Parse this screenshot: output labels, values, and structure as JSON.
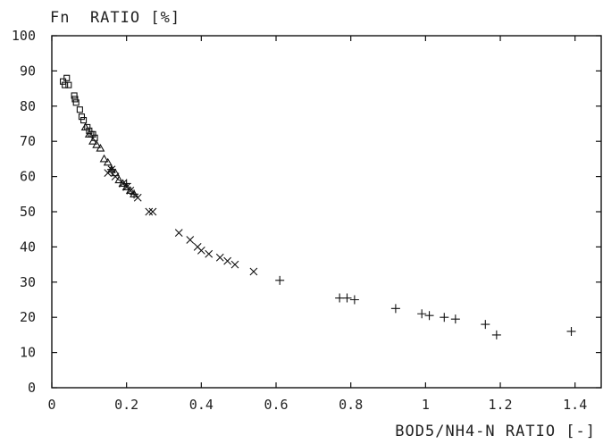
{
  "chart_data": {
    "type": "scatter",
    "ylabel": "Fn  RATIO [%]",
    "xlabel": "BOD5/NH4-N RATIO [-]",
    "xlim": [
      0,
      1.47
    ],
    "ylim": [
      0,
      100
    ],
    "x_ticks": [
      "0",
      "0.2",
      "0.4",
      "0.6",
      "0.8",
      "1",
      "1.2",
      "1.4"
    ],
    "y_ticks": [
      "0",
      "10",
      "20",
      "30",
      "40",
      "50",
      "60",
      "70",
      "80",
      "90",
      "100"
    ],
    "x_tick_values": [
      0,
      0.2,
      0.4,
      0.6,
      0.8,
      1.0,
      1.2,
      1.4
    ],
    "y_tick_values": [
      0,
      10,
      20,
      30,
      40,
      50,
      60,
      70,
      80,
      90,
      100
    ],
    "grid": false,
    "series": [
      {
        "marker": "square",
        "x": [
          0.03,
          0.04,
          0.035,
          0.045,
          0.06,
          0.062,
          0.065,
          0.075,
          0.08,
          0.085,
          0.095,
          0.1,
          0.105,
          0.11,
          0.115
        ],
        "y": [
          87,
          88,
          86,
          86,
          83,
          82,
          81,
          79,
          77,
          76,
          74,
          73,
          72,
          72,
          71
        ]
      },
      {
        "marker": "triangle",
        "x": [
          0.09,
          0.1,
          0.11,
          0.12,
          0.13,
          0.14,
          0.15,
          0.16,
          0.17,
          0.18,
          0.19,
          0.2,
          0.21,
          0.22
        ],
        "y": [
          74,
          72,
          70,
          69,
          68,
          65,
          64,
          62,
          61,
          59,
          58,
          57,
          56,
          55
        ]
      },
      {
        "marker": "x",
        "x": [
          0.15,
          0.16,
          0.17,
          0.19,
          0.2,
          0.21,
          0.23,
          0.26,
          0.27,
          0.34,
          0.37,
          0.39,
          0.4,
          0.42,
          0.45,
          0.47,
          0.49,
          0.54
        ],
        "y": [
          61,
          62,
          60,
          58,
          57,
          56,
          54,
          50,
          50,
          44,
          42,
          40,
          39,
          38,
          37,
          36,
          35,
          33
        ]
      },
      {
        "marker": "plus",
        "x": [
          0.16,
          0.2,
          0.22,
          0.61,
          0.77,
          0.79,
          0.81,
          0.92,
          0.99,
          1.01,
          1.05,
          1.08,
          1.16,
          1.19,
          1.39
        ],
        "y": [
          62,
          58,
          55,
          30.5,
          25.5,
          25.5,
          25,
          22.5,
          21,
          20.5,
          20,
          19.5,
          18,
          15,
          16
        ]
      }
    ]
  }
}
